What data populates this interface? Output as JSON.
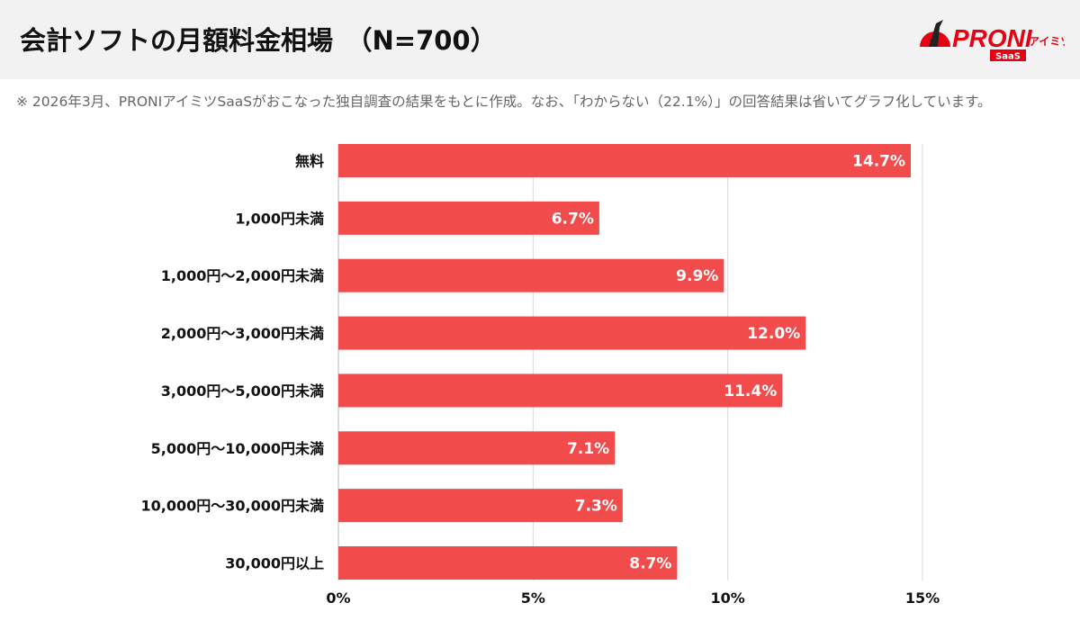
{
  "header": {
    "title": "会計ソフトの月額料金相場　（N=700）",
    "logo_text": "PRONIアイミツ SaaS"
  },
  "note": "※ 2026年3月、PRONIアイミツSaaSがおこなった独自調査の結果をもとに作成。なお、「わからない（22.1%）」の回答結果は省いてグラフ化しています。",
  "colors": {
    "bar": "#f24b4b",
    "grid": "#d9d9d9",
    "header_bg": "#f2f2f2",
    "brand": "#e60012"
  },
  "chart_data": {
    "type": "bar",
    "orientation": "horizontal",
    "title": "",
    "xlabel": "",
    "ylabel": "",
    "xlim": [
      0,
      15
    ],
    "grid": true,
    "x_ticks": [
      0,
      5,
      10,
      15
    ],
    "x_tick_labels": [
      "0%",
      "5%",
      "10%",
      "15%"
    ],
    "categories": [
      "無料",
      "1,000円未満",
      "1,000円〜2,000円未満",
      "2,000円〜3,000円未満",
      "3,000円〜5,000円未満",
      "5,000円〜10,000円未満",
      "10,000円〜30,000円未満",
      "30,000円以上"
    ],
    "values": [
      14.7,
      6.7,
      9.9,
      12.0,
      11.4,
      7.1,
      7.3,
      8.7
    ],
    "data_labels": [
      "14.7%",
      "6.7%",
      "9.9%",
      "12.0%",
      "11.4%",
      "7.1%",
      "7.3%",
      "8.7%"
    ]
  }
}
